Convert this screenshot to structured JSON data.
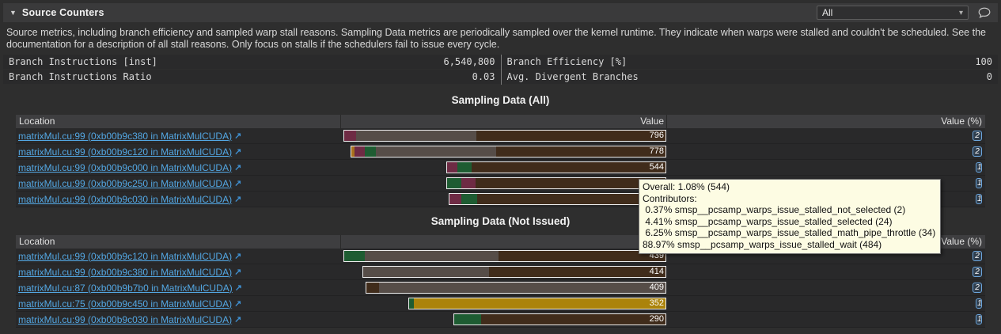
{
  "header": {
    "title": "Source Counters",
    "filter_value": "All"
  },
  "icons": {
    "collapse": "▼",
    "dropdown_arrow": "▾",
    "external_link": "↗",
    "comment": "speech-bubble"
  },
  "description": "Source metrics, including branch efficiency and sampled warp stall reasons. Sampling Data metrics are periodically sampled over the kernel runtime. They indicate when warps were stalled and couldn't be scheduled. See the documentation for a description of all stall reasons. Only focus on stalls if the schedulers fail to issue every cycle.",
  "metrics": {
    "left": [
      {
        "name": "Branch Instructions [inst]",
        "value": "6,540,800"
      },
      {
        "name": "Branch Instructions Ratio",
        "value": "0.03"
      }
    ],
    "right": [
      {
        "name": "Branch Efficiency [%]",
        "value": "100"
      },
      {
        "name": "Avg. Divergent Branches",
        "value": "0"
      }
    ]
  },
  "bar_colors": {
    "maroon": "#6e2b44",
    "gray": "#564d48",
    "green": "#1e5c32",
    "brown": "#402c1b",
    "gold": "#ab830b",
    "orange": "#a8701c"
  },
  "tables": [
    {
      "title": "Sampling Data (All)",
      "columns": [
        "Location",
        "Value",
        "Value (%)"
      ],
      "rows": [
        {
          "location": "matrixMul.cu:99 (0xb00b9c380 in MatrixMulCUDA)",
          "value": "796",
          "pct": "2",
          "segments": [
            [
              "maroon",
              15
            ],
            [
              "gray",
              153
            ],
            [
              "brown",
              240
            ]
          ]
        },
        {
          "location": "matrixMul.cu:99 (0xb00b9c120 in MatrixMulCUDA)",
          "value": "778",
          "pct": "2",
          "segments": [
            [
              "orange",
              4
            ],
            [
              "maroon",
              13
            ],
            [
              "green",
              14
            ],
            [
              "gray",
              153
            ],
            [
              "brown",
              215
            ]
          ]
        },
        {
          "location": "matrixMul.cu:99 (0xb00b9c000 in MatrixMulCUDA)",
          "value": "544",
          "pct": "1",
          "segments": [
            [
              "maroon",
              13
            ],
            [
              "green",
              18
            ],
            [
              "brown",
              247
            ]
          ]
        },
        {
          "location": "matrixMul.cu:99 (0xb00b9c250 in MatrixMulCUDA)",
          "value": "",
          "pct": "1",
          "segments": [
            [
              "green",
              18
            ],
            [
              "maroon",
              18
            ],
            [
              "brown",
              242
            ]
          ]
        },
        {
          "location": "matrixMul.cu:99 (0xb00b9c030 in MatrixMulCUDA)",
          "value": "",
          "pct": "1",
          "segments": [
            [
              "maroon",
              15
            ],
            [
              "green",
              20
            ],
            [
              "brown",
              240
            ]
          ]
        }
      ]
    },
    {
      "title": "Sampling Data (Not Issued)",
      "columns": [
        "Location",
        "Value",
        "Value (%)"
      ],
      "rows": [
        {
          "location": "matrixMul.cu:99 (0xb00b9c120 in MatrixMulCUDA)",
          "value": "439",
          "pct": "2",
          "segments": [
            [
              "green",
              26
            ],
            [
              "gray",
              170
            ],
            [
              "brown",
              212
            ]
          ]
        },
        {
          "location": "matrixMul.cu:99 (0xb00b9c380 in MatrixMulCUDA)",
          "value": "414",
          "pct": "2",
          "segments": [
            [
              "gray",
              160
            ],
            [
              "brown",
              224
            ]
          ]
        },
        {
          "location": "matrixMul.cu:87 (0xb00b9b7b0 in MatrixMulCUDA)",
          "value": "409",
          "pct": "2",
          "segments": [
            [
              "brown",
              16
            ],
            [
              "gray",
              364
            ]
          ]
        },
        {
          "location": "matrixMul.cu:75 (0xb00b9c450 in MatrixMulCUDA)",
          "value": "352",
          "pct": "1",
          "segments": [
            [
              "green",
              6
            ],
            [
              "gold",
              320
            ]
          ]
        },
        {
          "location": "matrixMul.cu:99 (0xb00b9c030 in MatrixMulCUDA)",
          "value": "290",
          "pct": "1",
          "segments": [
            [
              "green",
              34
            ],
            [
              "brown",
              235
            ]
          ]
        }
      ]
    }
  ],
  "tooltip": {
    "lines": [
      "Overall: 1.08% (544)",
      "Contributors:",
      " 0.37% smsp__pcsamp_warps_issue_stalled_not_selected (2)",
      " 4.41% smsp__pcsamp_warps_issue_stalled_selected (24)",
      " 6.25% smsp__pcsamp_warps_issue_stalled_math_pipe_throttle (34)",
      "88.97% smsp__pcsamp_warps_issue_stalled_wait (484)"
    ]
  }
}
